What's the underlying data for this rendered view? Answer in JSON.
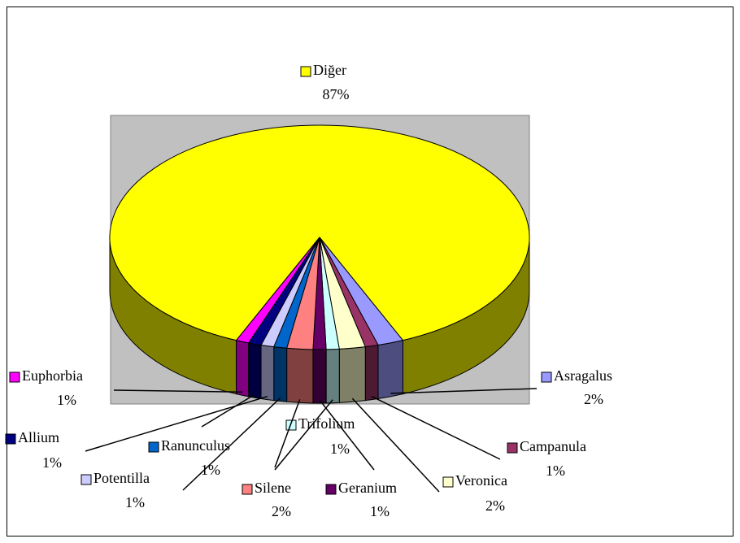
{
  "chart_data": {
    "type": "pie3d",
    "categories": [
      "Diğer",
      "Asragalus",
      "Campanula",
      "Veronica",
      "Trifolium",
      "Geranium",
      "Silene",
      "Ranunculus",
      "Potentilla",
      "Allium",
      "Euphorbia"
    ],
    "values": [
      87,
      2,
      1,
      2,
      1,
      1,
      2,
      1,
      1,
      1,
      1
    ],
    "value_labels": [
      "87%",
      "2%",
      "1%",
      "2%",
      "1%",
      "1%",
      "2%",
      "1%",
      "1%",
      "1%",
      "1%"
    ],
    "colors": [
      "#ffff00",
      "#9999ff",
      "#993366",
      "#ffffcc",
      "#ccffff",
      "#660066",
      "#ff8080",
      "#0066cc",
      "#ccccff",
      "#000080",
      "#ff00ff"
    ]
  }
}
